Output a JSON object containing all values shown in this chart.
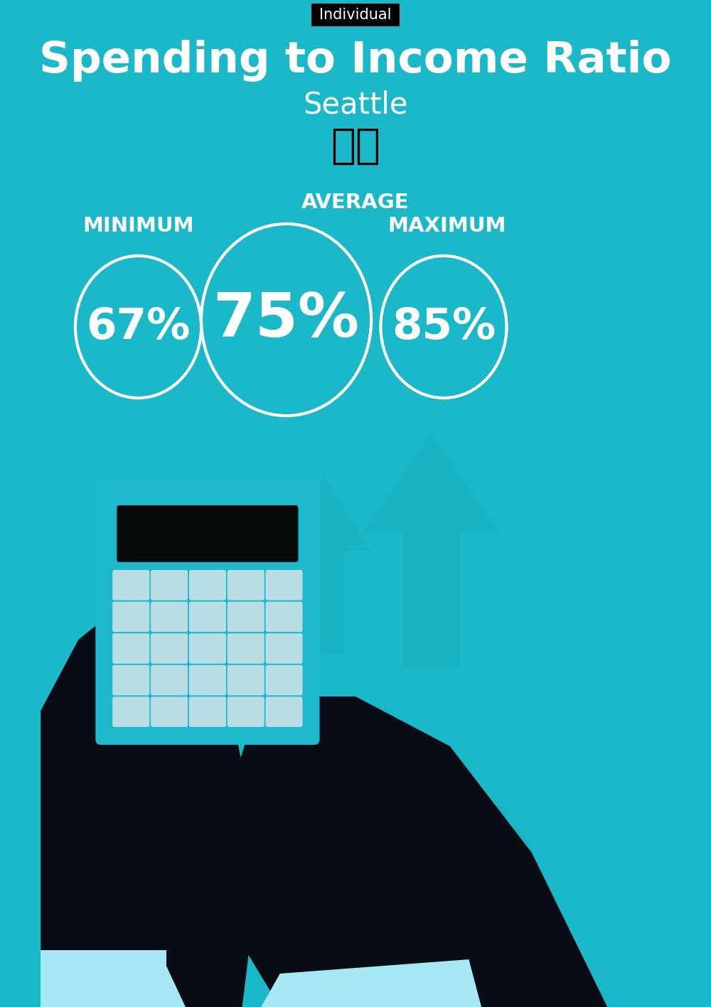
{
  "title": "Spending to Income Ratio",
  "subtitle": "Seattle",
  "tag_text": "Individual",
  "tag_bg": "#000000",
  "tag_text_color": "#ffffff",
  "bg_color": "#1ab8c8",
  "text_color": "#ffffff",
  "min_label": "MINIMUM",
  "avg_label": "AVERAGE",
  "max_label": "MAXIMUM",
  "min_value": "67%",
  "avg_value": "75%",
  "max_value": "85%",
  "circle_color": "#ffffff",
  "circle_linewidth": 3,
  "title_fontsize": 44,
  "subtitle_fontsize": 30,
  "tag_fontsize": 15,
  "label_fontsize": 21,
  "min_value_fontsize": 44,
  "avg_value_fontsize": 62,
  "max_value_fontsize": 44,
  "flag_emoji": "🇺🇸",
  "figwidth": 10.0,
  "figheight": 14.17,
  "dpi": 100
}
